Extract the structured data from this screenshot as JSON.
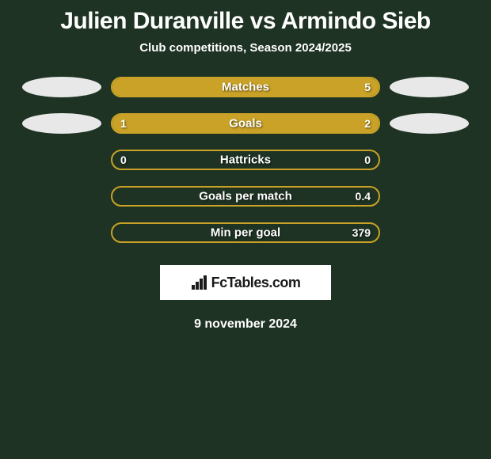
{
  "title": "Julien Duranville vs Armindo Sieb",
  "subtitle": "Club competitions, Season 2024/2025",
  "date": "9 november 2024",
  "logo": {
    "text": "FcTables.com"
  },
  "colors": {
    "background": "#1e3323",
    "left_player": "#e8e8e8",
    "right_player": "#e8e8e8",
    "bar_border": "#c9a227",
    "bar_fill_left": "#c9a227",
    "bar_fill_right": "#c9a227",
    "bar_empty": "transparent",
    "text": "#ffffff"
  },
  "rows": [
    {
      "label": "Matches",
      "left": {
        "value": "",
        "pct": 44,
        "ellipse": true,
        "fill_side": "left"
      },
      "right": {
        "value": "5",
        "pct": 100,
        "ellipse": true,
        "fill_side": "right"
      }
    },
    {
      "label": "Goals",
      "left": {
        "value": "1",
        "pct": 33,
        "ellipse": true,
        "fill_side": "left"
      },
      "right": {
        "value": "2",
        "pct": 67,
        "ellipse": true,
        "fill_side": "right"
      }
    },
    {
      "label": "Hattricks",
      "left": {
        "value": "0",
        "pct": 0,
        "ellipse": false,
        "fill_side": "left"
      },
      "right": {
        "value": "0",
        "pct": 0,
        "ellipse": false,
        "fill_side": "right"
      }
    },
    {
      "label": "Goals per match",
      "left": {
        "value": "",
        "pct": 0,
        "ellipse": false,
        "fill_side": "left"
      },
      "right": {
        "value": "0.4",
        "pct": 0,
        "ellipse": false,
        "fill_side": "right"
      }
    },
    {
      "label": "Min per goal",
      "left": {
        "value": "",
        "pct": 0,
        "ellipse": false,
        "fill_side": "left"
      },
      "right": {
        "value": "379",
        "pct": 0,
        "ellipse": false,
        "fill_side": "right"
      }
    }
  ]
}
